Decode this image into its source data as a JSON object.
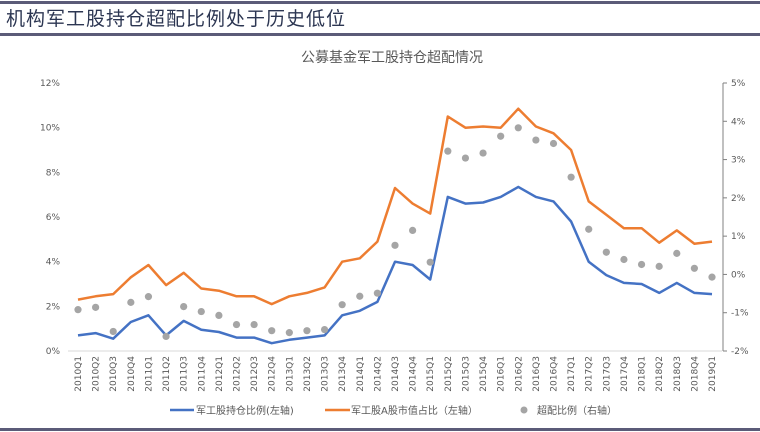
{
  "heading": "机构军工股持仓超配比例处于历史低位",
  "colors": {
    "blue": "#4472c4",
    "orange": "#ed7d31",
    "gray": "#a5a5a5",
    "rule": "#5b5b78"
  },
  "chart_data": {
    "type": "line",
    "title": "公募基金军工股持仓超配情况",
    "categories": [
      "2010Q1",
      "2010Q2",
      "2010Q3",
      "2010Q4",
      "2011Q1",
      "2011Q2",
      "2011Q3",
      "2011Q4",
      "2012Q1",
      "2012Q2",
      "2012Q3",
      "2012Q4",
      "2013Q1",
      "2013Q2",
      "2013Q3",
      "2013Q4",
      "2014Q1",
      "2014Q2",
      "2014Q3",
      "2014Q4",
      "2015Q1",
      "2015Q2",
      "2015Q3",
      "2015Q4",
      "2016Q1",
      "2016Q2",
      "2016Q3",
      "2016Q4",
      "2017Q1",
      "2017Q2",
      "2017Q3",
      "2017Q4",
      "2018Q1",
      "2018Q2",
      "2018Q3",
      "2018Q4",
      "2019Q1"
    ],
    "left_axis": {
      "ylim": [
        0,
        12
      ],
      "ticks": [
        "0%",
        "2%",
        "4%",
        "6%",
        "8%",
        "10%",
        "12%"
      ]
    },
    "right_axis": {
      "ylim": [
        -2,
        5
      ],
      "ticks": [
        "-2%",
        "-1%",
        "0%",
        "1%",
        "2%",
        "3%",
        "4%",
        "5%"
      ]
    },
    "legend_position": "bottom",
    "grid": false,
    "series": [
      {
        "name": "军工股持仓比例(左轴)",
        "type": "line",
        "axis": "left",
        "color": "#4472c4",
        "values": [
          0.7,
          0.8,
          0.55,
          1.3,
          1.6,
          0.7,
          1.35,
          0.95,
          0.85,
          0.6,
          0.6,
          0.35,
          0.5,
          0.6,
          0.7,
          1.6,
          1.8,
          2.2,
          4.0,
          3.85,
          3.2,
          6.9,
          6.6,
          6.65,
          6.9,
          7.35,
          6.9,
          6.7,
          5.8,
          4.0,
          3.4,
          3.05,
          3.0,
          2.6,
          3.05,
          2.6,
          2.55
        ]
      },
      {
        "name": "军工股A股市值占比（左轴）",
        "type": "line",
        "axis": "left",
        "color": "#ed7d31",
        "values": [
          2.3,
          2.45,
          2.55,
          3.3,
          3.85,
          2.95,
          3.5,
          2.8,
          2.7,
          2.45,
          2.45,
          2.1,
          2.45,
          2.6,
          2.85,
          4.0,
          4.15,
          4.9,
          7.3,
          6.6,
          6.15,
          10.5,
          10.0,
          10.05,
          10.0,
          10.85,
          10.05,
          9.75,
          9.0,
          6.7,
          6.1,
          5.5,
          5.5,
          4.85,
          5.4,
          4.8,
          4.9
        ]
      },
      {
        "name": "超配比例（右轴）",
        "type": "scatter",
        "axis": "right",
        "color": "#a5a5a5",
        "values": [
          -0.92,
          -0.86,
          -1.49,
          -0.73,
          -0.58,
          -1.62,
          -0.84,
          -0.97,
          -1.07,
          -1.31,
          -1.31,
          -1.47,
          -1.52,
          -1.47,
          -1.44,
          -0.79,
          -0.57,
          -0.49,
          0.76,
          1.15,
          0.32,
          3.22,
          3.04,
          3.17,
          3.61,
          3.83,
          3.51,
          3.42,
          2.54,
          1.18,
          0.58,
          0.39,
          0.26,
          0.21,
          0.55,
          0.16,
          -0.07
        ]
      }
    ]
  }
}
